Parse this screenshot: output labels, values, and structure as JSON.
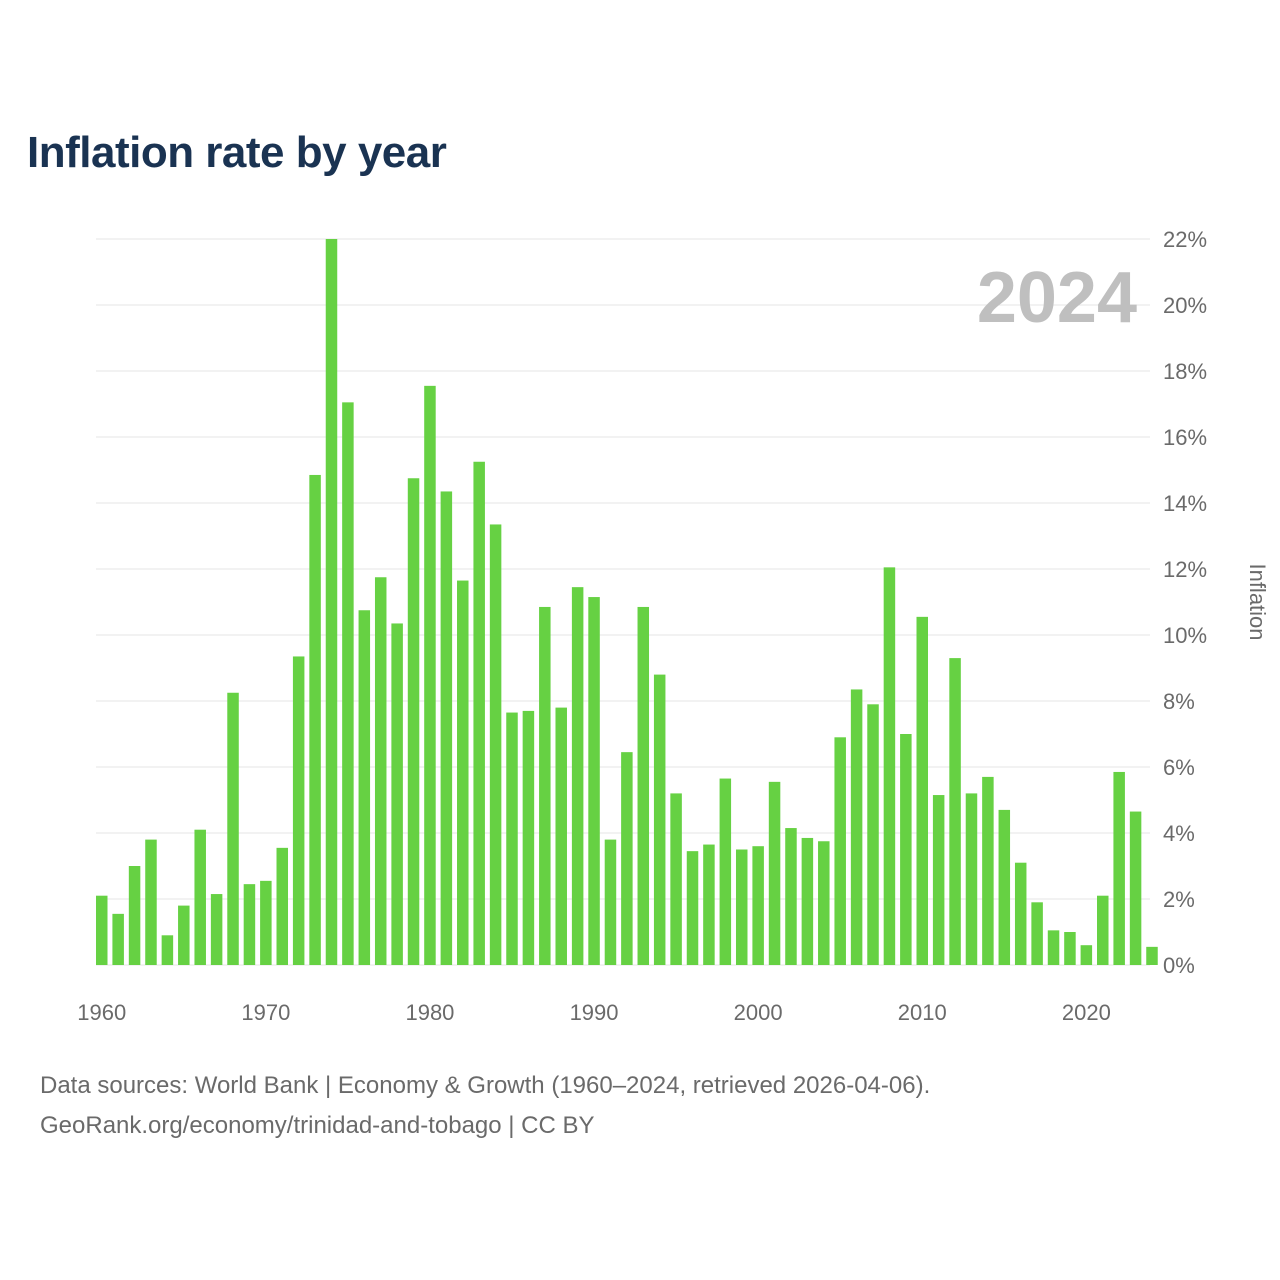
{
  "header": {
    "title": "Inflation rate by year"
  },
  "chart_data": {
    "type": "bar",
    "title": "Inflation rate by year",
    "year_label": "2024",
    "ylabel": "Inflation",
    "xlabel": "",
    "ylim": [
      0,
      22
    ],
    "y_ticks": [
      "0%",
      "2%",
      "4%",
      "6%",
      "8%",
      "10%",
      "12%",
      "14%",
      "16%",
      "18%",
      "20%",
      "22%"
    ],
    "x_ticks": [
      "1960",
      "1970",
      "1980",
      "1990",
      "2000",
      "2010",
      "2020"
    ],
    "grid": true,
    "bar_color": "#66d143",
    "categories": [
      1960,
      1961,
      1962,
      1963,
      1964,
      1965,
      1966,
      1967,
      1968,
      1969,
      1970,
      1971,
      1972,
      1973,
      1974,
      1975,
      1976,
      1977,
      1978,
      1979,
      1980,
      1981,
      1982,
      1983,
      1984,
      1985,
      1986,
      1987,
      1988,
      1989,
      1990,
      1991,
      1992,
      1993,
      1994,
      1995,
      1996,
      1997,
      1998,
      1999,
      2000,
      2001,
      2002,
      2003,
      2004,
      2005,
      2006,
      2007,
      2008,
      2009,
      2010,
      2011,
      2012,
      2013,
      2014,
      2015,
      2016,
      2017,
      2018,
      2019,
      2020,
      2021,
      2022,
      2023,
      2024
    ],
    "values": [
      2.1,
      1.55,
      3.0,
      3.8,
      0.9,
      1.8,
      4.1,
      2.15,
      8.25,
      2.45,
      2.55,
      3.55,
      9.35,
      14.85,
      22.0,
      17.05,
      10.75,
      11.75,
      10.35,
      14.75,
      17.55,
      14.35,
      11.65,
      15.25,
      13.35,
      7.65,
      7.7,
      10.85,
      7.8,
      11.45,
      11.15,
      3.8,
      6.45,
      10.85,
      8.8,
      5.2,
      3.45,
      3.65,
      5.65,
      3.5,
      3.6,
      5.55,
      4.15,
      3.85,
      3.75,
      6.9,
      8.35,
      7.9,
      12.05,
      7.0,
      10.55,
      5.15,
      9.3,
      5.2,
      5.7,
      4.7,
      3.1,
      1.9,
      1.05,
      1.0,
      0.6,
      2.1,
      5.85,
      4.65,
      0.55
    ]
  },
  "footer": {
    "source_line1": "Data sources: World Bank | Economy & Growth (1960–2024, retrieved 2026-04-06).",
    "source_line2": "GeoRank.org/economy/trinidad-and-tobago | CC BY"
  }
}
